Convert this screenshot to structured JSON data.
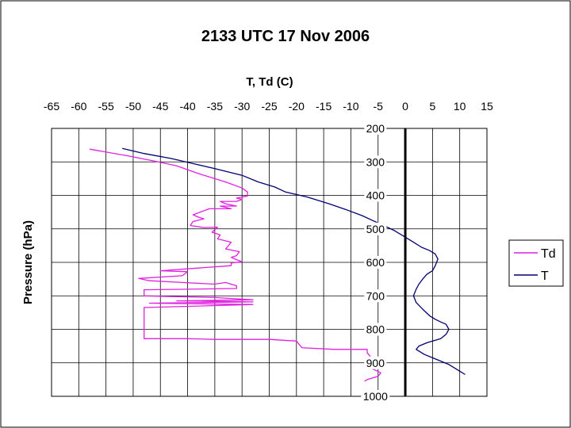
{
  "chart_data": {
    "type": "line",
    "title": "2133 UTC 17 Nov 2006",
    "xlabel": "T, Td (C)",
    "ylabel": "Pressure (hPa)",
    "xlim": [
      -65,
      15
    ],
    "ylim": [
      200,
      1000
    ],
    "y_axis_inverted": true,
    "x_axis_position": "top",
    "x_ticks": [
      -65,
      -60,
      -55,
      -50,
      -45,
      -40,
      -35,
      -30,
      -25,
      -20,
      -15,
      -10,
      -5,
      0,
      5,
      10,
      15
    ],
    "x_tick_labels": [
      "-65",
      "-60",
      "-55",
      "-50",
      "-45",
      "-40",
      "-35",
      "-30",
      "-25",
      "-20",
      "-15",
      "-10",
      "-5",
      "0",
      "5",
      "10",
      "15"
    ],
    "y_ticks": [
      200,
      300,
      400,
      500,
      600,
      700,
      800,
      900,
      1000
    ],
    "y_tick_labels": [
      "200",
      "300",
      "400",
      "500",
      "600",
      "700",
      "800",
      "900",
      "1000"
    ],
    "grid": true,
    "legend_position": "right",
    "series": [
      {
        "name": "Td",
        "color": "#e020e0",
        "points": [
          [
            -58,
            262
          ],
          [
            -51,
            282
          ],
          [
            -46,
            298
          ],
          [
            -42,
            312
          ],
          [
            -38,
            335
          ],
          [
            -35,
            350
          ],
          [
            -33,
            360
          ],
          [
            -30,
            378
          ],
          [
            -29,
            390
          ],
          [
            -29,
            402
          ],
          [
            -31,
            408
          ],
          [
            -30,
            412
          ],
          [
            -31,
            418
          ],
          [
            -34,
            418
          ],
          [
            -33,
            425
          ],
          [
            -31,
            432
          ],
          [
            -34,
            432
          ],
          [
            -32,
            440
          ],
          [
            -36,
            440
          ],
          [
            -39,
            458
          ],
          [
            -38,
            465
          ],
          [
            -37,
            470
          ],
          [
            -39,
            478
          ],
          [
            -39.5,
            490
          ],
          [
            -37,
            496
          ],
          [
            -34.5,
            495
          ],
          [
            -35.5,
            510
          ],
          [
            -34,
            518
          ],
          [
            -34.5,
            530
          ],
          [
            -32,
            540
          ],
          [
            -33,
            560
          ],
          [
            -30.5,
            568
          ],
          [
            -31,
            580
          ],
          [
            -32,
            585
          ],
          [
            -31,
            592
          ],
          [
            -30,
            598
          ],
          [
            -32,
            602
          ],
          [
            -32,
            610
          ],
          [
            -45,
            625
          ],
          [
            -40,
            628
          ],
          [
            -41,
            640
          ],
          [
            -49,
            648
          ],
          [
            -47,
            655
          ],
          [
            -41,
            660
          ],
          [
            -35,
            665
          ],
          [
            -33,
            660
          ],
          [
            -31,
            670
          ],
          [
            -31,
            678
          ],
          [
            -48,
            682
          ],
          [
            -48,
            700
          ],
          [
            -35,
            705
          ],
          [
            -28,
            712
          ],
          [
            -42,
            715
          ],
          [
            -28,
            718
          ],
          [
            -47,
            722
          ],
          [
            -28,
            726
          ],
          [
            -48,
            735
          ],
          [
            -48,
            748
          ],
          [
            -48,
            760
          ],
          [
            -48,
            772
          ],
          [
            -48,
            784
          ],
          [
            -48,
            795
          ],
          [
            -48,
            805
          ],
          [
            -48,
            815
          ],
          [
            -48,
            828
          ],
          [
            -40,
            828
          ],
          [
            -35,
            830
          ],
          [
            -25,
            830
          ],
          [
            -20,
            835
          ],
          [
            -19,
            855
          ],
          [
            -13,
            860
          ],
          [
            -7,
            860
          ],
          [
            -7,
            870
          ],
          [
            -6,
            890
          ],
          [
            -6,
            905
          ],
          [
            -6,
            918
          ],
          [
            -4.5,
            930
          ],
          [
            -5,
            940
          ],
          [
            -7,
            950
          ],
          [
            -7.5,
            955
          ]
        ]
      },
      {
        "name": "T",
        "color": "#000070",
        "points": [
          [
            -52,
            260
          ],
          [
            -48,
            275
          ],
          [
            -43,
            290
          ],
          [
            -39,
            305
          ],
          [
            -35,
            320
          ],
          [
            -30,
            340
          ],
          [
            -27,
            360
          ],
          [
            -24,
            375
          ],
          [
            -22,
            390
          ],
          [
            -18,
            405
          ],
          [
            -14,
            425
          ],
          [
            -11,
            442
          ],
          [
            -8,
            460
          ],
          [
            -6,
            475
          ],
          [
            -4,
            490
          ],
          [
            -2,
            505
          ],
          [
            0,
            525
          ],
          [
            1.5,
            540
          ],
          [
            3,
            555
          ],
          [
            4.5,
            565
          ],
          [
            5.5,
            575
          ],
          [
            6,
            590
          ],
          [
            5.5,
            610
          ],
          [
            5,
            625
          ],
          [
            4,
            635
          ],
          [
            3.2,
            650
          ],
          [
            2.5,
            665
          ],
          [
            2,
            680
          ],
          [
            1.5,
            700
          ],
          [
            2,
            720
          ],
          [
            3.2,
            740
          ],
          [
            4.5,
            760
          ],
          [
            5.5,
            770
          ],
          [
            6.5,
            778
          ],
          [
            7.5,
            785
          ],
          [
            8,
            800
          ],
          [
            7.5,
            815
          ],
          [
            6.5,
            828
          ],
          [
            4,
            840
          ],
          [
            2.5,
            850
          ],
          [
            2,
            860
          ],
          [
            3.5,
            875
          ],
          [
            5,
            885
          ],
          [
            6.5,
            895
          ],
          [
            8,
            905
          ],
          [
            9,
            915
          ],
          [
            10,
            925
          ],
          [
            11,
            935
          ]
        ]
      }
    ]
  }
}
